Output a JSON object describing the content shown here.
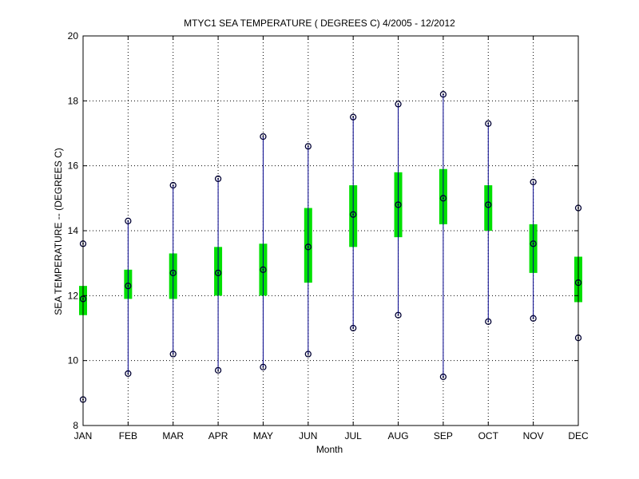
{
  "chart_data": {
    "type": "box",
    "title": "MTYC1  SEA TEMPERATURE ( DEGREES C) 4/2005 - 12/2012",
    "xlabel": "Month",
    "ylabel": "SEA TEMPERATURE -- (DEGREES C)",
    "ylim": [
      8,
      20
    ],
    "yticks": [
      8,
      10,
      12,
      14,
      16,
      18,
      20
    ],
    "grid": true,
    "categories": [
      "JAN",
      "FEB",
      "MAR",
      "APR",
      "MAY",
      "JUN",
      "JUL",
      "AUG",
      "SEP",
      "OCT",
      "NOV",
      "DEC"
    ],
    "series": [
      {
        "min": [
          8.8,
          9.6,
          10.2,
          9.7,
          9.8,
          10.2,
          11.0,
          11.4,
          9.5,
          11.2,
          11.3,
          10.7
        ]
      },
      {
        "q1": [
          11.4,
          11.9,
          11.9,
          12.0,
          12.0,
          12.4,
          13.5,
          13.8,
          14.2,
          14.0,
          12.7,
          11.8
        ]
      },
      {
        "median": [
          11.9,
          12.3,
          12.7,
          12.7,
          12.8,
          13.5,
          14.5,
          14.8,
          15.0,
          14.8,
          13.6,
          12.4
        ]
      },
      {
        "q3": [
          12.3,
          12.8,
          13.3,
          13.5,
          13.6,
          14.7,
          15.4,
          15.8,
          15.9,
          15.4,
          14.2,
          13.2
        ]
      },
      {
        "max": [
          13.6,
          14.3,
          15.4,
          15.6,
          16.9,
          16.6,
          17.5,
          17.9,
          18.2,
          17.3,
          15.5,
          14.7
        ]
      }
    ],
    "colors": {
      "whisker": "#00008b",
      "box": "#00e000",
      "marker": "#000033",
      "grid": "#000000"
    }
  }
}
